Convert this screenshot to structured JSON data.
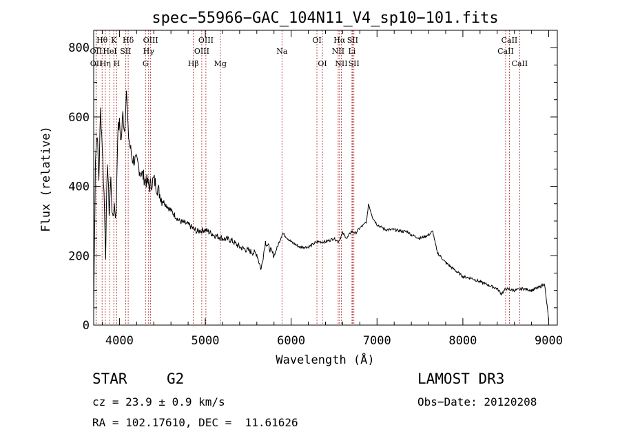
{
  "chart_data": {
    "type": "line",
    "title": "spec−55966−GAC_104N11_V4_sp10−101.fits",
    "xlabel": "Wavelength (Å)",
    "ylabel": "Flux (relative)",
    "xlim": [
      3700,
      9100
    ],
    "ylim": [
      0,
      850
    ],
    "x_ticks": [
      4000,
      5000,
      6000,
      7000,
      8000,
      9000
    ],
    "y_ticks": [
      0,
      200,
      400,
      600,
      800
    ],
    "series": [
      {
        "name": "flux",
        "x": [
          3700,
          3720,
          3740,
          3760,
          3780,
          3800,
          3820,
          3840,
          3860,
          3880,
          3900,
          3920,
          3940,
          3960,
          3980,
          4000,
          4020,
          4040,
          4060,
          4080,
          4100,
          4120,
          4150,
          4200,
          4250,
          4300,
          4350,
          4400,
          4500,
          4600,
          4700,
          4800,
          4900,
          5000,
          5100,
          5200,
          5300,
          5400,
          5500,
          5600,
          5650,
          5700,
          5800,
          5900,
          6000,
          6100,
          6200,
          6300,
          6400,
          6500,
          6550,
          6600,
          6650,
          6700,
          6750,
          6800,
          6850,
          6880,
          6900,
          6950,
          7000,
          7100,
          7200,
          7300,
          7350,
          7400,
          7500,
          7600,
          7650,
          7700,
          7800,
          7900,
          8000,
          8100,
          8200,
          8300,
          8400,
          8450,
          8500,
          8600,
          8700,
          8800,
          8900,
          8950,
          9000
        ],
        "y": [
          40,
          480,
          560,
          420,
          620,
          520,
          380,
          210,
          480,
          330,
          420,
          300,
          350,
          310,
          560,
          580,
          530,
          610,
          560,
          680,
          560,
          520,
          480,
          470,
          440,
          420,
          400,
          420,
          360,
          330,
          300,
          290,
          270,
          275,
          260,
          250,
          245,
          225,
          215,
          205,
          160,
          240,
          200,
          265,
          240,
          225,
          225,
          240,
          240,
          250,
          240,
          265,
          250,
          270,
          265,
          280,
          290,
          300,
          350,
          310,
          290,
          275,
          275,
          270,
          270,
          260,
          250,
          260,
          270,
          210,
          180,
          160,
          140,
          135,
          125,
          115,
          105,
          90,
          105,
          100,
          105,
          100,
          110,
          120,
          15
        ]
      }
    ],
    "spectral_lines": [
      {
        "label": "Hθ",
        "x": 3798,
        "row": 1
      },
      {
        "label": "OII",
        "x": 3727,
        "row": 2
      },
      {
        "label": "OII",
        "x": 3729,
        "row": 3
      },
      {
        "label": "HeI",
        "x": 3889,
        "row": 2
      },
      {
        "label": "Hη",
        "x": 3835,
        "row": 3
      },
      {
        "label": "K",
        "x": 3934,
        "row": 1
      },
      {
        "label": "H",
        "x": 3968,
        "row": 3
      },
      {
        "label": "SII",
        "x": 4072,
        "row": 2
      },
      {
        "label": "Hδ",
        "x": 4102,
        "row": 1
      },
      {
        "label": "OIII",
        "x": 4363,
        "row": 1
      },
      {
        "label": "Hγ",
        "x": 4340,
        "row": 2
      },
      {
        "label": "G",
        "x": 4304,
        "row": 3
      },
      {
        "label": "Hβ",
        "x": 4861,
        "row": 3
      },
      {
        "label": "OIII",
        "x": 5007,
        "row": 1
      },
      {
        "label": "OIII",
        "x": 4959,
        "row": 2
      },
      {
        "label": "Mg",
        "x": 5175,
        "row": 3
      },
      {
        "label": "Na",
        "x": 5893,
        "row": 2
      },
      {
        "label": "OI",
        "x": 6300,
        "row": 1
      },
      {
        "label": "OI",
        "x": 6364,
        "row": 3
      },
      {
        "label": "Hα",
        "x": 6563,
        "row": 1
      },
      {
        "label": "NII",
        "x": 6548,
        "row": 2
      },
      {
        "label": "NII",
        "x": 6584,
        "row": 3
      },
      {
        "label": "SII",
        "x": 6716,
        "row": 1
      },
      {
        "label": "Li",
        "x": 6708,
        "row": 2
      },
      {
        "label": "SII",
        "x": 6731,
        "row": 3
      },
      {
        "label": "CaII",
        "x": 8542,
        "row": 1
      },
      {
        "label": "CaII",
        "x": 8498,
        "row": 2
      },
      {
        "label": "CaII",
        "x": 8662,
        "row": 3
      }
    ]
  },
  "info": {
    "class": "STAR",
    "subclass": "G2",
    "survey": "LAMOST DR3",
    "cz": "cz = 23.9 ± 0.9 km/s",
    "obs_date": "Obs−Date: 20120208",
    "radec": "RA = 102.17610, DEC =  11.61626"
  },
  "colors": {
    "line": "#000000",
    "marker": "#b22222"
  }
}
